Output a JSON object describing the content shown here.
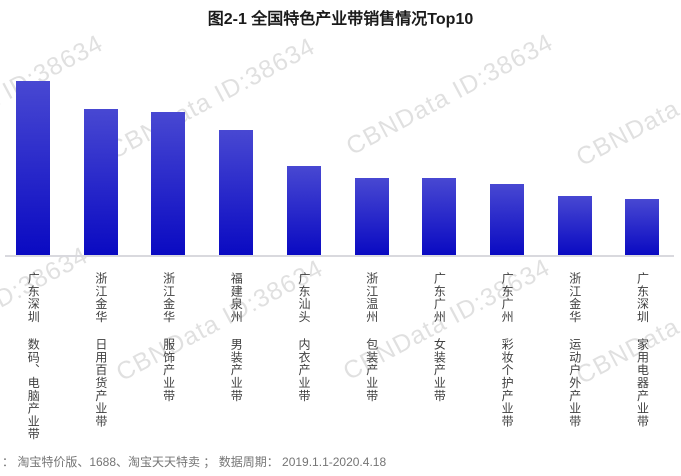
{
  "title": "图2-1 全国特色产业带销售情况Top10",
  "watermark": {
    "text": "CBNData ID:38634"
  },
  "footer": {
    "text": "： 淘宝特价版、1688、淘宝天天特卖 ； 数据周期： 2019.1.1-2020.4.18"
  },
  "chart_data": {
    "type": "bar",
    "title": "图2-1 全国特色产业带销售情况Top10",
    "categories": [
      "广东深圳 数码、电脑产业带",
      "浙江金华 日用百货产业带",
      "浙江金华 服饰产业带",
      "福建泉州 男装产业带",
      "广东汕头 内衣产业带",
      "浙江温州 包装产业带",
      "广东广州 女装产业带",
      "广东广州 彩妆个护产业带",
      "浙江金华 运动户外产业带",
      "广东深圳 家用电器产业带"
    ],
    "values": [
      100,
      84,
      82,
      72,
      51,
      44,
      44,
      41,
      34,
      32
    ],
    "xlabel": "",
    "ylabel": "",
    "ylim": [
      0,
      100
    ],
    "value_axis_visible": false,
    "grid": false,
    "legend": false,
    "bar_gradient_top": "#4848d2",
    "bar_gradient_bottom": "#0a0ac2",
    "axis_line_color": "#d9d9de"
  }
}
